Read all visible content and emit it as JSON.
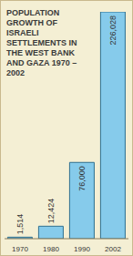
{
  "chart_data": {
    "type": "bar",
    "title": "POPULATION GROWTH OF ISRAELI SETTLEMENTS IN THE WEST BANK AND GAZA 1970 – 2002",
    "categories": [
      "1970",
      "1980",
      "1990",
      "2002"
    ],
    "values": [
      1514,
      12424,
      76000,
      226028
    ],
    "value_labels": [
      "1,514",
      "12,424",
      "76,000",
      "226,028"
    ],
    "color": "#86cbeb",
    "ylim": [
      0,
      226028
    ],
    "data_labels": true,
    "tick_labels": "x",
    "grid": false
  }
}
